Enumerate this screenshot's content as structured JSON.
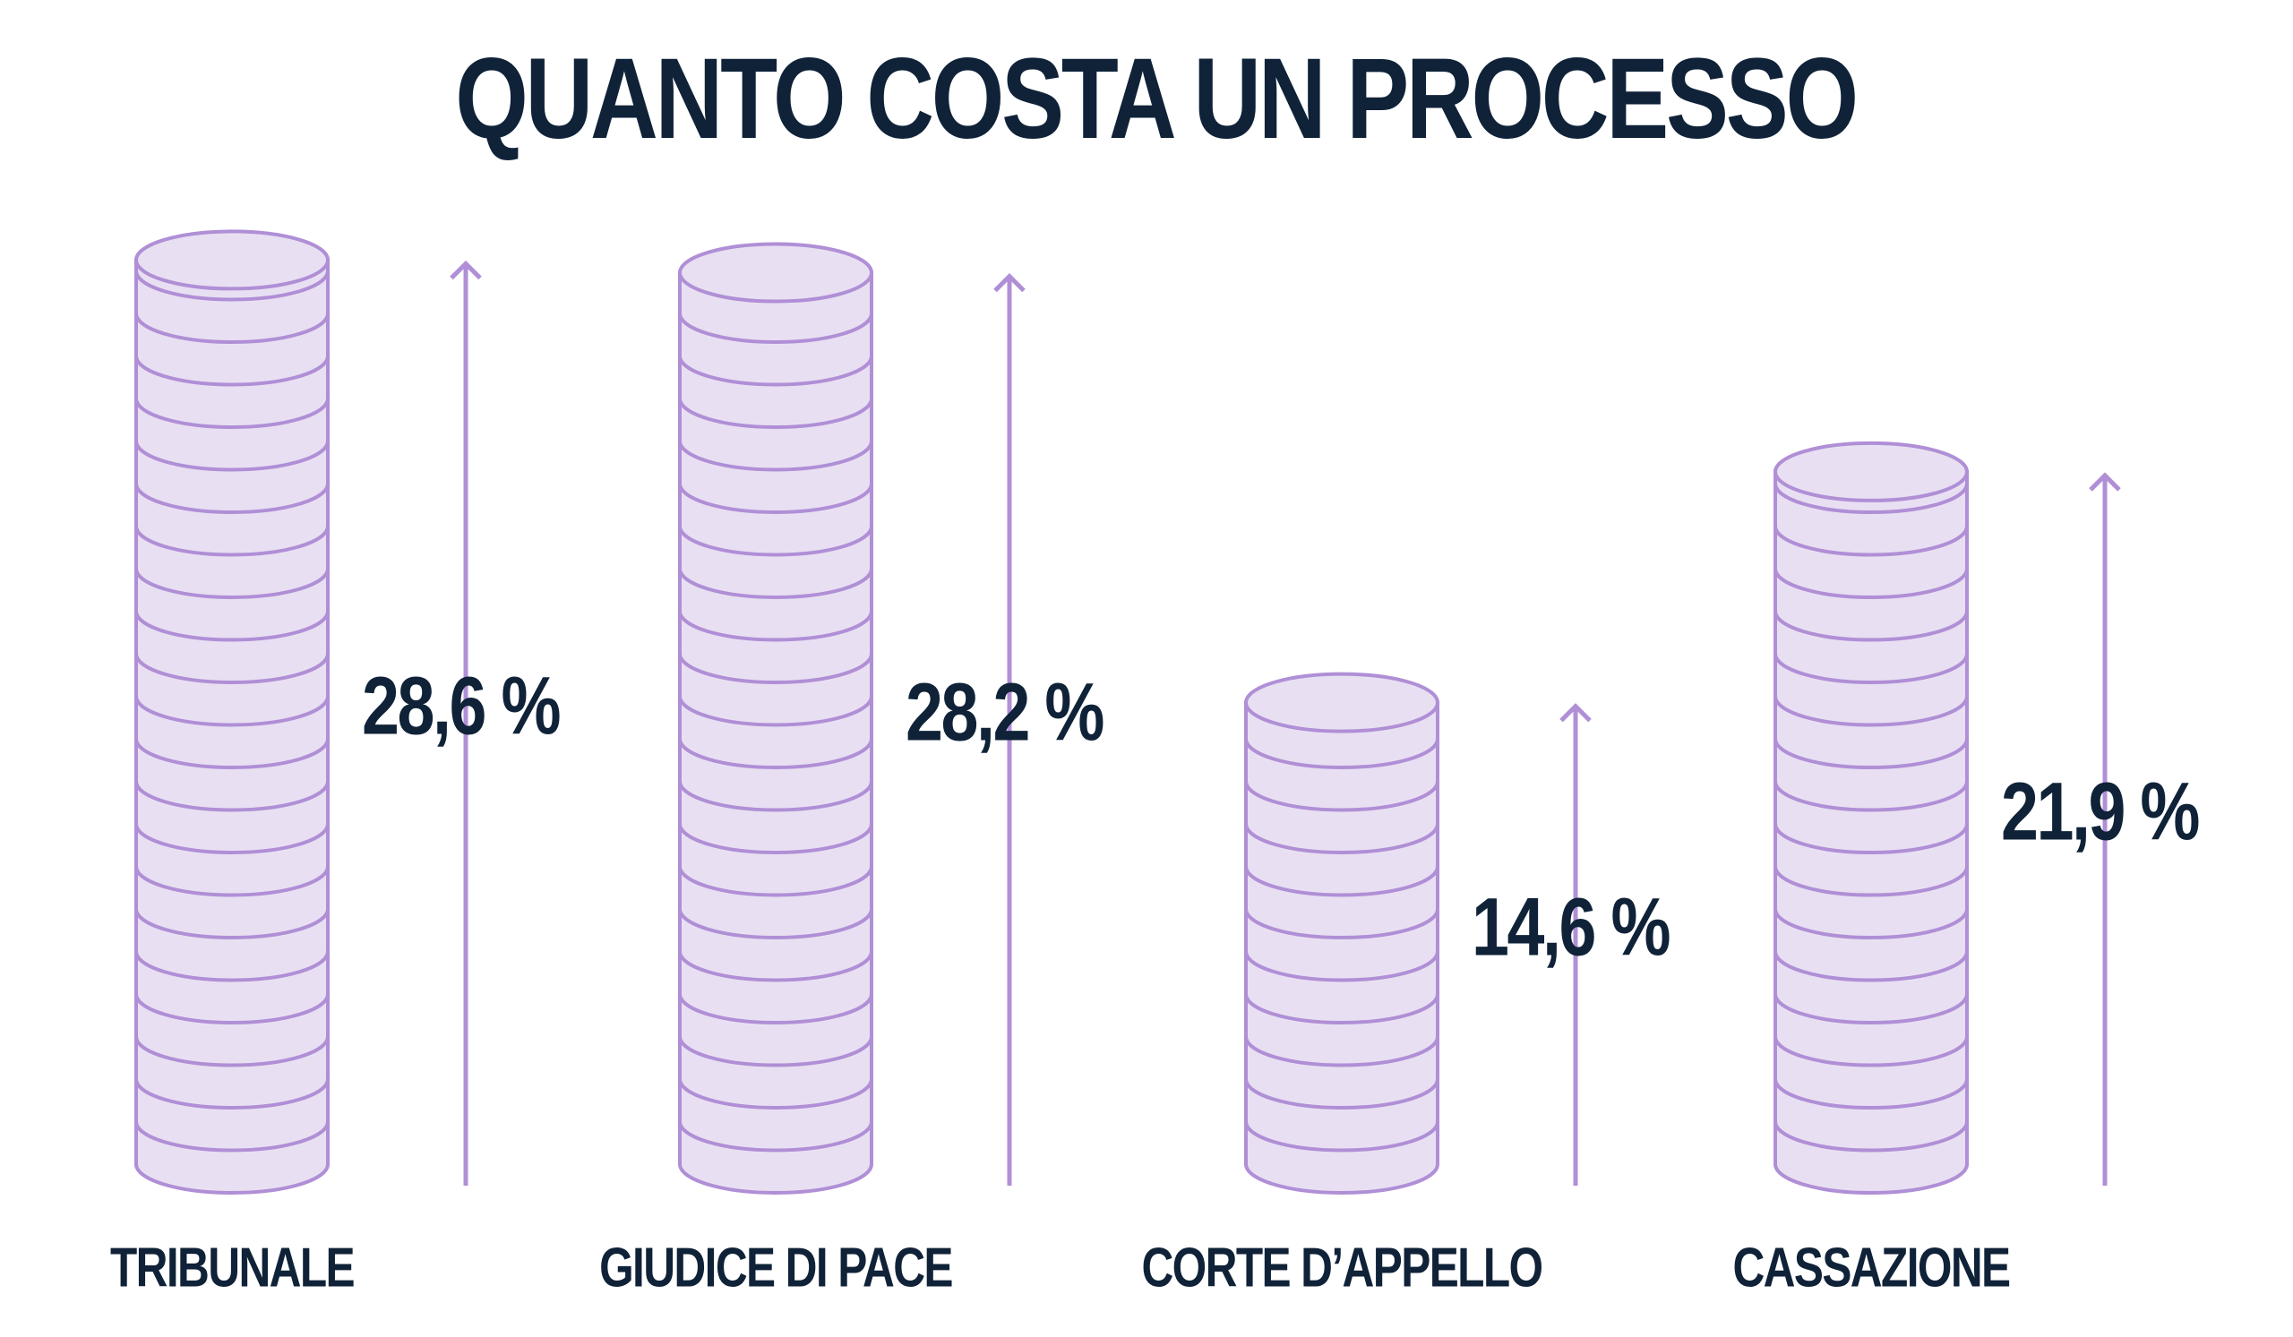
{
  "chart_data": {
    "type": "bar",
    "title": "QUANTO COSTA UN PROCESSO",
    "categories": [
      "TRIBUNALE",
      "GIUDICE DI PACE",
      "CORTE D’APPELLO",
      "CASSAZIONE"
    ],
    "values": [
      28.6,
      28.2,
      14.6,
      21.9
    ],
    "value_labels": [
      "28,6 %",
      "28,2 %",
      "14,6 %",
      "21,9 %"
    ],
    "color": "#e8e0f2"
  }
}
